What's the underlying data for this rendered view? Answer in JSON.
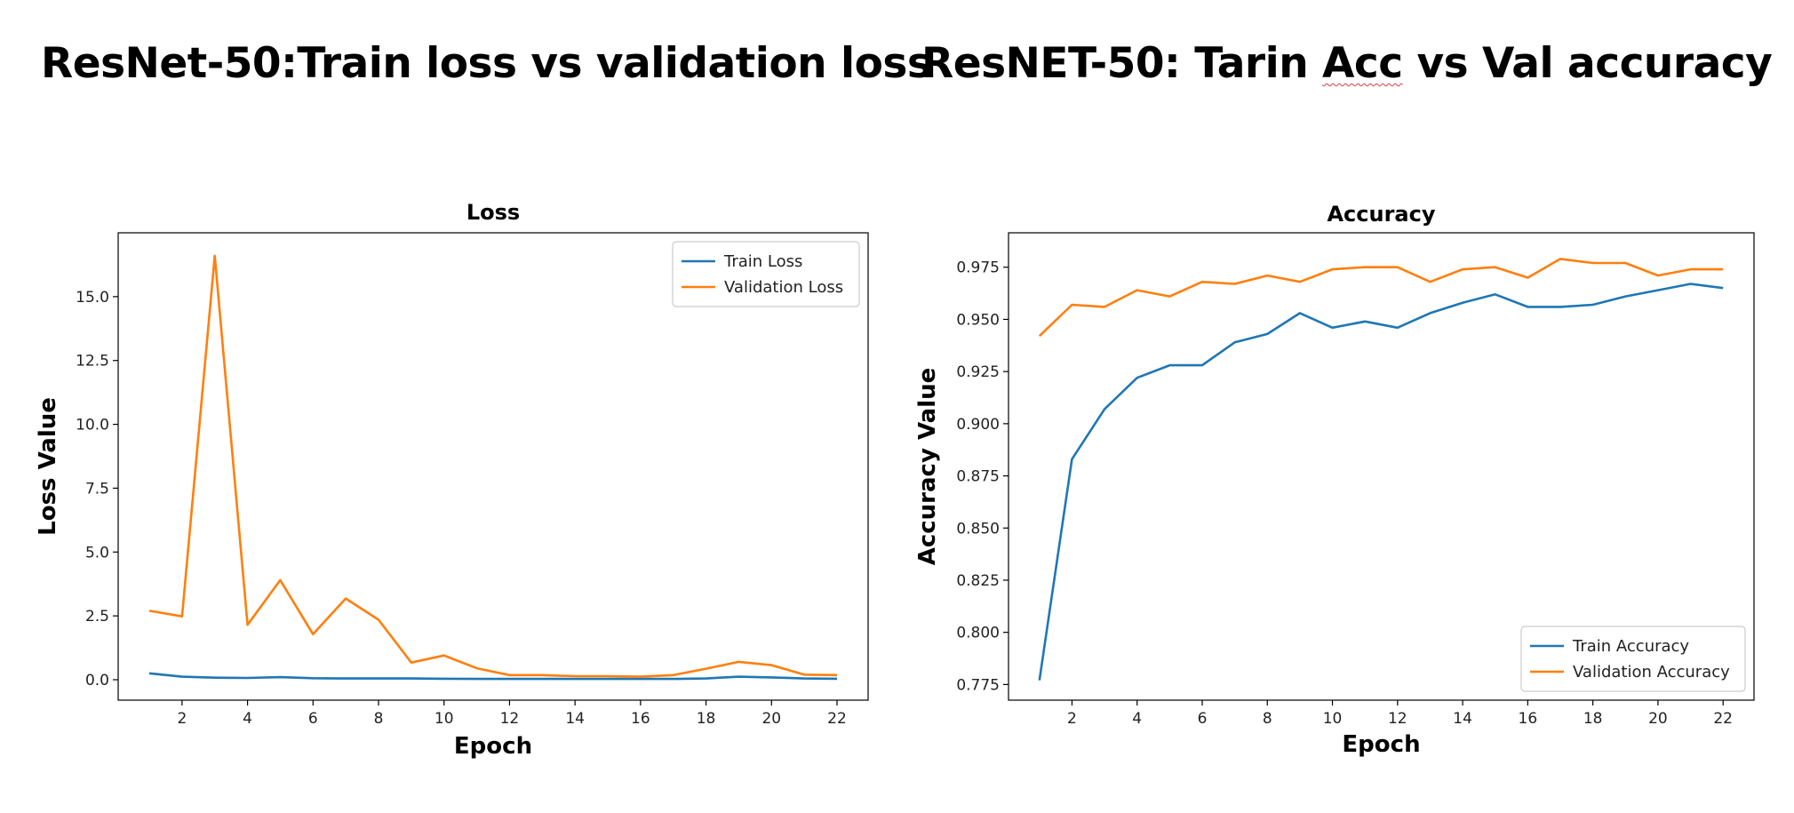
{
  "slide": {
    "title_left": "ResNet-50:Train loss vs validation loss",
    "title_right_prefix": "ResNET-50: Tarin ",
    "title_right_underlined": "Acc",
    "title_right_suffix": " vs Val accuracy"
  },
  "colors": {
    "train": "#1f77b4",
    "validation": "#ff7f0e"
  },
  "chart_data": [
    {
      "type": "line",
      "title": "Loss",
      "xlabel": "Epoch",
      "ylabel": "Loss Value",
      "x": [
        1,
        2,
        3,
        4,
        5,
        6,
        7,
        8,
        9,
        10,
        11,
        12,
        13,
        14,
        15,
        16,
        17,
        18,
        19,
        20,
        21,
        22
      ],
      "xlim": [
        0.05,
        22.95
      ],
      "ylim": [
        -0.8,
        17.5
      ],
      "xticks": [
        2,
        4,
        6,
        8,
        10,
        12,
        14,
        16,
        18,
        20,
        22
      ],
      "yticks": [
        0.0,
        2.5,
        5.0,
        7.5,
        10.0,
        12.5,
        15.0
      ],
      "ytick_labels": [
        "0.0",
        "2.5",
        "5.0",
        "7.5",
        "10.0",
        "12.5",
        "15.0"
      ],
      "legend_position": "upper right",
      "series": [
        {
          "name": "Train Loss",
          "color": "#1f77b4",
          "values": [
            0.25,
            0.12,
            0.08,
            0.07,
            0.1,
            0.06,
            0.05,
            0.05,
            0.05,
            0.04,
            0.03,
            0.03,
            0.03,
            0.03,
            0.03,
            0.03,
            0.03,
            0.05,
            0.12,
            0.09,
            0.05,
            0.04
          ]
        },
        {
          "name": "Validation Loss",
          "color": "#ff7f0e",
          "values": [
            2.7,
            2.48,
            16.6,
            2.15,
            3.9,
            1.78,
            3.18,
            2.35,
            0.67,
            0.95,
            0.45,
            0.18,
            0.18,
            0.14,
            0.14,
            0.12,
            0.18,
            0.43,
            0.7,
            0.57,
            0.2,
            0.18
          ]
        }
      ]
    },
    {
      "type": "line",
      "title": "Accuracy",
      "xlabel": "Epoch",
      "ylabel": "Accuracy Value",
      "x": [
        1,
        2,
        3,
        4,
        5,
        6,
        7,
        8,
        9,
        10,
        11,
        12,
        13,
        14,
        15,
        16,
        17,
        18,
        19,
        20,
        21,
        22
      ],
      "xlim": [
        0.05,
        22.95
      ],
      "ylim": [
        0.7675,
        0.9915
      ],
      "xticks": [
        2,
        4,
        6,
        8,
        10,
        12,
        14,
        16,
        18,
        20,
        22
      ],
      "yticks": [
        0.775,
        0.8,
        0.825,
        0.85,
        0.875,
        0.9,
        0.925,
        0.95,
        0.975
      ],
      "ytick_labels": [
        "0.775",
        "0.800",
        "0.825",
        "0.850",
        "0.875",
        "0.900",
        "0.925",
        "0.950",
        "0.975"
      ],
      "legend_position": "lower right",
      "series": [
        {
          "name": "Train Accuracy",
          "color": "#1f77b4",
          "values": [
            0.777,
            0.883,
            0.907,
            0.922,
            0.928,
            0.928,
            0.939,
            0.943,
            0.953,
            0.946,
            0.949,
            0.946,
            0.953,
            0.958,
            0.962,
            0.956,
            0.956,
            0.957,
            0.961,
            0.964,
            0.967,
            0.965
          ]
        },
        {
          "name": "Validation Accuracy",
          "color": "#ff7f0e",
          "values": [
            0.942,
            0.957,
            0.956,
            0.964,
            0.961,
            0.968,
            0.967,
            0.971,
            0.968,
            0.974,
            0.975,
            0.975,
            0.968,
            0.974,
            0.975,
            0.97,
            0.979,
            0.977,
            0.977,
            0.971,
            0.974,
            0.974
          ]
        }
      ]
    }
  ]
}
